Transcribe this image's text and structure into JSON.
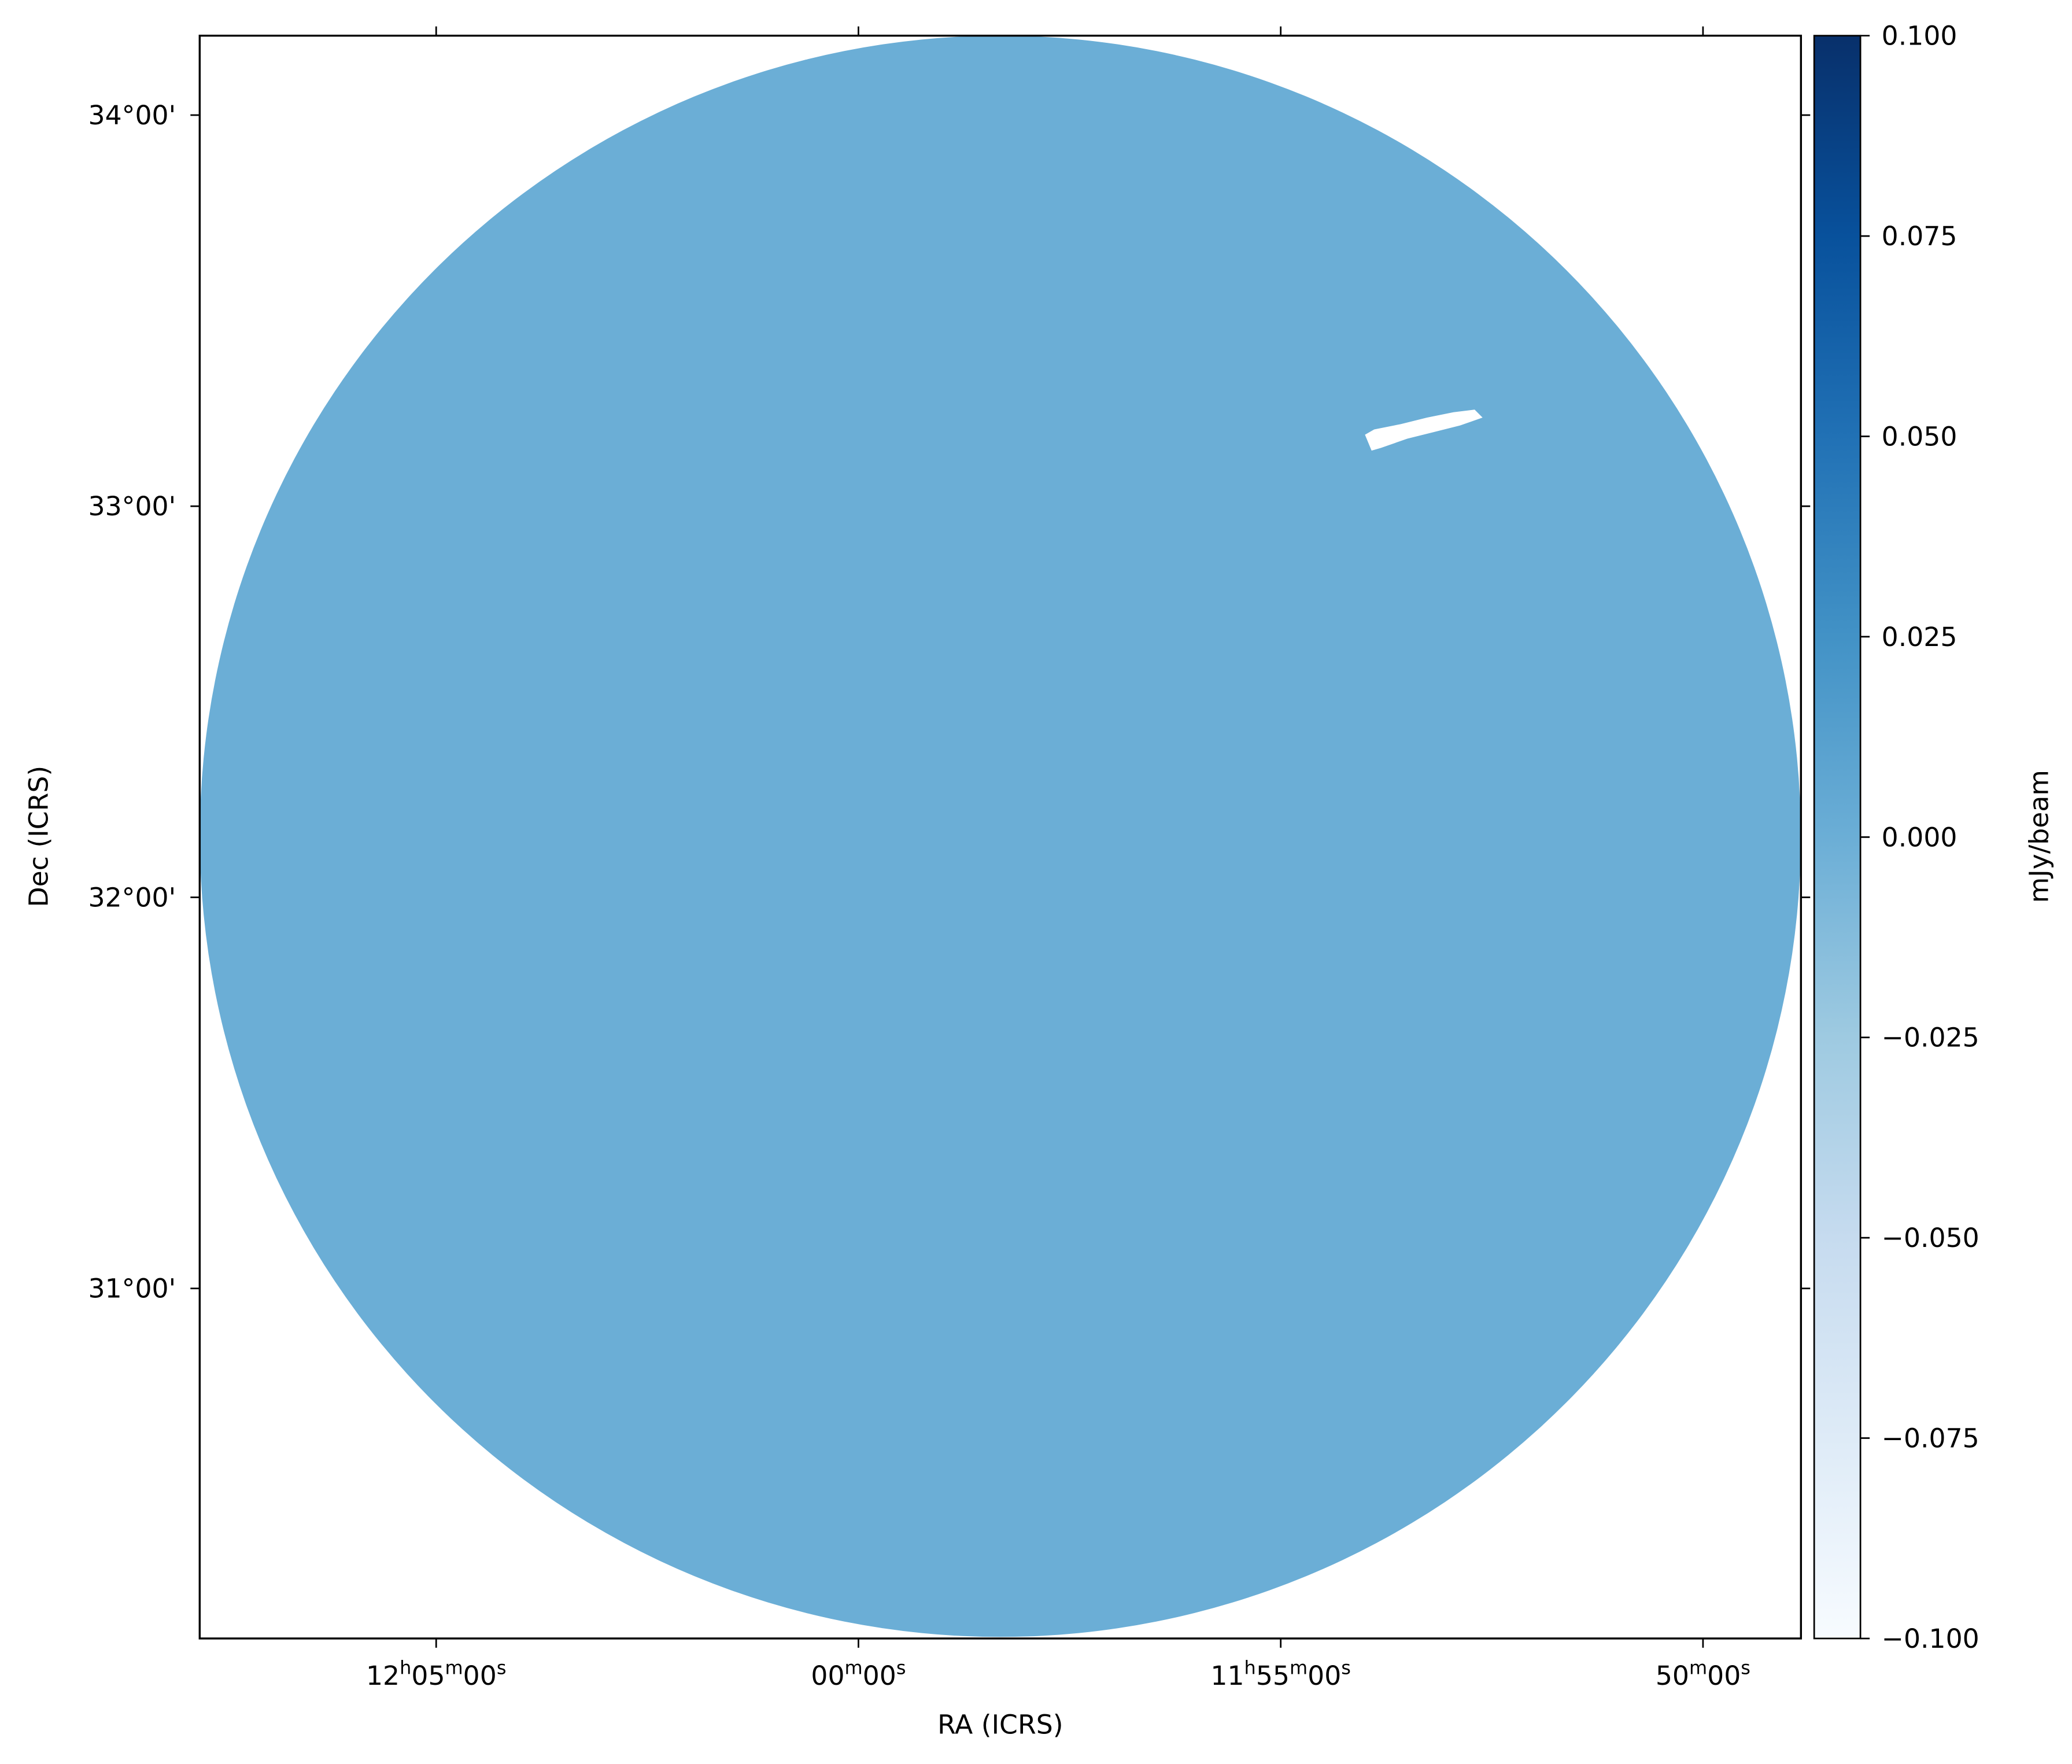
{
  "chart_data": {
    "type": "image",
    "xlabel": "RA (ICRS)",
    "ylabel": "Dec (ICRS)",
    "xlim": [
      181.95,
      177.21
    ],
    "xticks": [
      {
        "value": 181.25,
        "label": "12h05m00s"
      },
      {
        "value": 180,
        "label": "00m00s"
      },
      {
        "value": 178.75,
        "label": "11h55m00s"
      },
      {
        "value": 177.5,
        "label": "50m00s"
      }
    ],
    "ylim": [
      30.105,
      34.203
    ],
    "yticks": [
      {
        "value": 34,
        "label": "34°00'"
      },
      {
        "value": 33,
        "label": "33°00'"
      },
      {
        "value": 32,
        "label": "32°00'"
      },
      {
        "value": 31,
        "label": "31°00'"
      }
    ],
    "image": {
      "center_ra": 179.58,
      "center_dec": 32.156,
      "radius": 2.047,
      "value": 0.005,
      "color": "#6baed6"
    },
    "colorbar": {
      "label": "mJy/beam",
      "lim": [
        -0.1,
        0.1
      ],
      "colors": [
        "#f7fbff",
        "#deebf7",
        "#c6dbef",
        "#9ecae1",
        "#6baed6",
        "#4292c6",
        "#2171b5",
        "#08519c",
        "#08306b"
      ],
      "ticks": [
        {
          "value": 0.1,
          "label": "0.100"
        },
        {
          "value": 0.075,
          "label": "0.075"
        },
        {
          "value": 0.05,
          "label": "0.050"
        },
        {
          "value": 0.025,
          "label": "0.025"
        },
        {
          "value": 0,
          "label": "0.000"
        },
        {
          "value": -0.025,
          "label": "−0.025"
        },
        {
          "value": -0.05,
          "label": "−0.050"
        },
        {
          "value": -0.075,
          "label": "−0.075"
        },
        {
          "value": -0.1,
          "label": "−0.100"
        }
      ]
    }
  }
}
